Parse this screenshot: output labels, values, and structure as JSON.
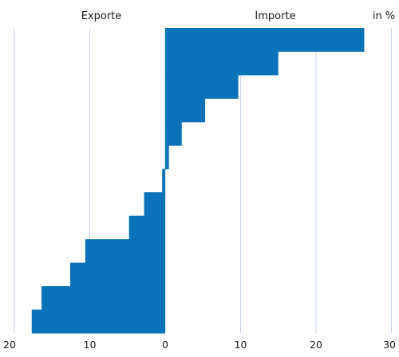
{
  "chart_data": {
    "type": "bar",
    "orientation": "horizontal",
    "layout": "back-to-back",
    "headers": {
      "left": "Exporte",
      "right": "Importe",
      "unit": "in %"
    },
    "x_tick_labels": [
      "20",
      "10",
      "0",
      "10",
      "20",
      "30"
    ],
    "exports": [
      0,
      0,
      0,
      0,
      0,
      0,
      0.4,
      2.8,
      4.8,
      10.6,
      12.6,
      16.4,
      17.7
    ],
    "imports": [
      26.4,
      15.0,
      9.7,
      5.3,
      2.2,
      0.5,
      0,
      0,
      0,
      0,
      0,
      0,
      0
    ],
    "xlim_left": [
      0,
      20
    ],
    "xlim_right": [
      0,
      30
    ],
    "grid": true,
    "bar_color": "#0a72b9",
    "grid_color": "#c5d3e6"
  }
}
